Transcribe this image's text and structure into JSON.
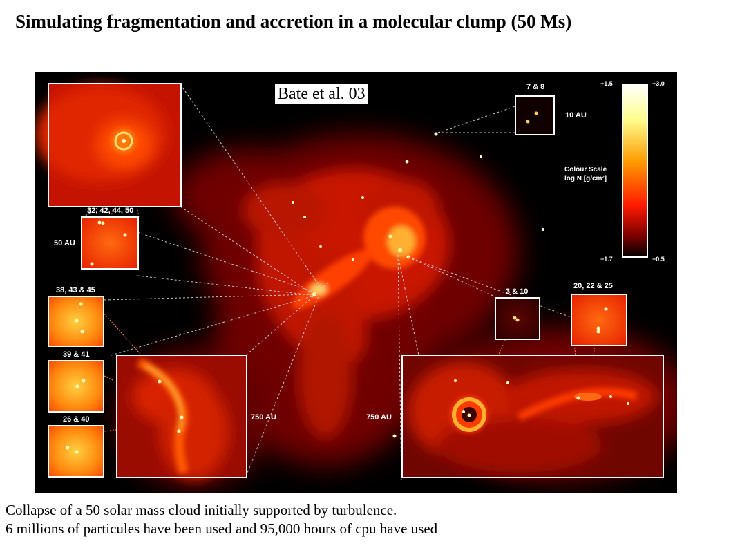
{
  "title": "Simulating fragmentation and accretion in a molecular clump (50 Ms)",
  "figure": {
    "citation": "Bate et al. 03",
    "labels": {
      "inset_7_8": "7 & 8",
      "scale_10au": "10 AU",
      "colour_scale_title": "Colour Scale",
      "colour_scale_units": "log N [g/cm²]",
      "scale_left_top": "+1.5",
      "scale_right_top": "+3.0",
      "scale_left_bottom": "−1.7",
      "scale_right_bottom": "−0.5",
      "inset_32": "32, 42, 44, 50",
      "scale_50au": "50 AU",
      "inset_38": "38, 43 & 45",
      "inset_39": "39 & 41",
      "inset_26": "26 & 40",
      "scale_750au_left": "750 AU",
      "scale_750au_right": "750 AU",
      "inset_3_10": "3 & 10",
      "inset_20": "20, 22 & 25"
    },
    "colors": {
      "background": "#000000",
      "gas_core": "#ffff80",
      "gas_mid": "#ff3000",
      "gas_outer": "#6a0000"
    }
  },
  "caption": {
    "line1": "Collapse of a 50 solar mass cloud initially supported by turbulence.",
    "line2": "6 millions of particules have been used and 95,000 hours of cpu have used"
  }
}
